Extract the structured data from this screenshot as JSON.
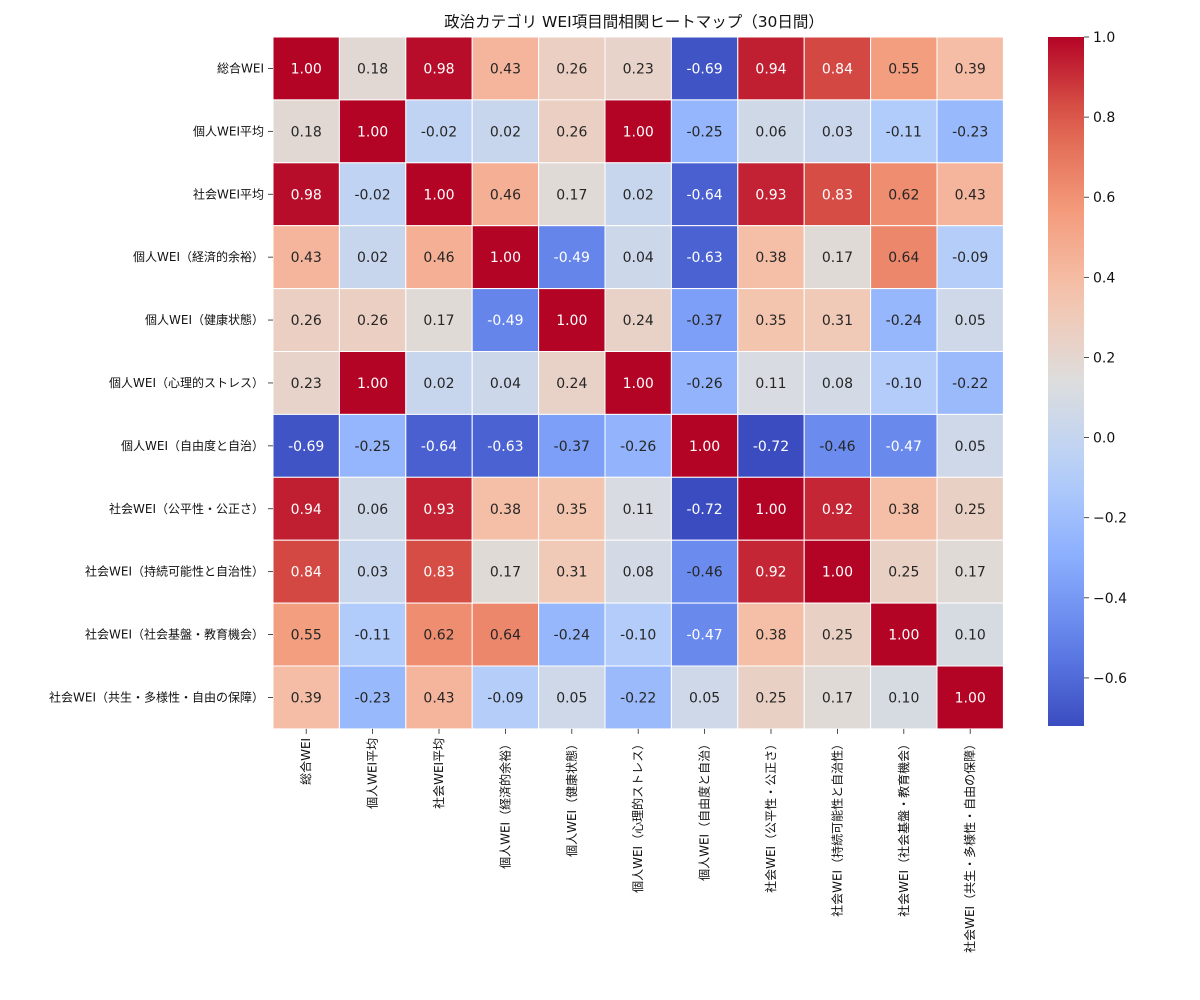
{
  "chart_data": {
    "type": "heatmap",
    "title": "政治カテゴリ WEI項目間相関ヒートマップ（30日間）",
    "xlabel": "",
    "ylabel": "",
    "categories": [
      "総合WEI",
      "個人WEI平均",
      "社会WEI平均",
      "個人WEI（経済的余裕）",
      "個人WEI（健康状態）",
      "個人WEI（心理的ストレス）",
      "個人WEI（自由度と自治）",
      "社会WEI（公平性・公正さ）",
      "社会WEI（持続可能性と自治性）",
      "社会WEI（社会基盤・教育機会）",
      "社会WEI（共生・多様性・自由の保障）"
    ],
    "values": [
      [
        1.0,
        0.18,
        0.98,
        0.43,
        0.26,
        0.23,
        -0.69,
        0.94,
        0.84,
        0.55,
        0.39
      ],
      [
        0.18,
        1.0,
        -0.02,
        0.02,
        0.26,
        1.0,
        -0.25,
        0.06,
        0.03,
        -0.11,
        -0.23
      ],
      [
        0.98,
        -0.02,
        1.0,
        0.46,
        0.17,
        0.02,
        -0.64,
        0.93,
        0.83,
        0.62,
        0.43
      ],
      [
        0.43,
        0.02,
        0.46,
        1.0,
        -0.49,
        0.04,
        -0.63,
        0.38,
        0.17,
        0.64,
        -0.09
      ],
      [
        0.26,
        0.26,
        0.17,
        -0.49,
        1.0,
        0.24,
        -0.37,
        0.35,
        0.31,
        -0.24,
        0.05
      ],
      [
        0.23,
        1.0,
        0.02,
        0.04,
        0.24,
        1.0,
        -0.26,
        0.11,
        0.08,
        -0.1,
        -0.22
      ],
      [
        -0.69,
        -0.25,
        -0.64,
        -0.63,
        -0.37,
        -0.26,
        1.0,
        -0.72,
        -0.46,
        -0.47,
        0.05
      ],
      [
        0.94,
        0.06,
        0.93,
        0.38,
        0.35,
        0.11,
        -0.72,
        1.0,
        0.92,
        0.38,
        0.25
      ],
      [
        0.84,
        0.03,
        0.83,
        0.17,
        0.31,
        0.08,
        -0.46,
        0.92,
        1.0,
        0.25,
        0.17
      ],
      [
        0.55,
        -0.11,
        0.62,
        0.64,
        -0.24,
        -0.1,
        -0.47,
        0.38,
        0.25,
        1.0,
        0.1
      ],
      [
        0.39,
        -0.23,
        0.43,
        -0.09,
        0.05,
        -0.22,
        0.05,
        0.25,
        0.17,
        0.1,
        1.0
      ]
    ],
    "colorbar": {
      "vmin": -0.72,
      "vmax": 1.0,
      "ticks": [
        1.0,
        0.8,
        0.6,
        0.4,
        0.2,
        0.0,
        -0.2,
        -0.4,
        -0.6
      ],
      "tick_labels": [
        "1.0",
        "0.8",
        "0.6",
        "0.4",
        "0.2",
        "0.0",
        "−0.2",
        "−0.4",
        "−0.6"
      ],
      "colormap": "coolwarm"
    }
  }
}
